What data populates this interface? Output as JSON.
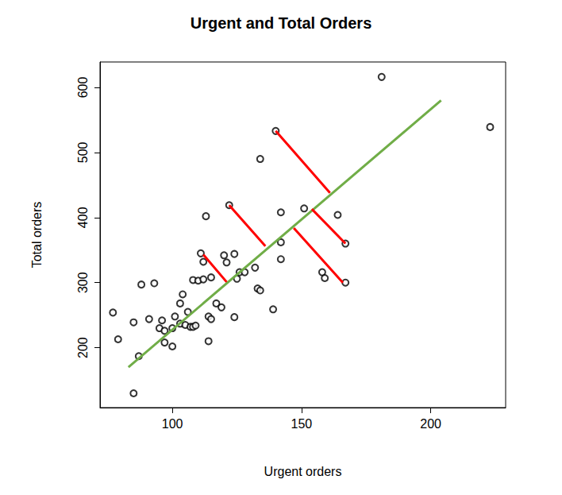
{
  "chart_data": {
    "type": "scatter",
    "title": "Urgent and Total Orders",
    "x_label": "Urgent orders",
    "y_label": "Total orders",
    "xlim": [
      72,
      229
    ],
    "ylim": [
      108,
      639
    ],
    "xticks": [
      100,
      150,
      200
    ],
    "yticks": [
      200,
      300,
      400,
      500,
      600
    ],
    "grid": false,
    "series": [
      {
        "type": "scatter",
        "color": "#000000",
        "marker": "circle_open",
        "x": [
          77,
          79,
          85,
          85,
          87,
          88,
          91,
          93,
          95,
          96,
          97,
          97,
          100,
          100,
          101,
          103,
          103,
          104,
          105,
          106,
          107,
          108,
          108,
          109,
          110,
          111,
          112,
          112,
          113,
          114,
          114,
          115,
          115,
          117,
          119,
          120,
          121,
          122,
          124,
          124,
          125,
          126,
          128,
          132,
          133,
          134,
          134,
          139,
          140,
          142,
          142,
          142,
          151,
          158,
          159,
          164,
          167,
          167,
          181,
          223
        ],
        "values": [
          254,
          213,
          130,
          239,
          187,
          297,
          244,
          299,
          230,
          242,
          208,
          226,
          202,
          230,
          248,
          237,
          268,
          282,
          235,
          255,
          232,
          232,
          304,
          234,
          303,
          345,
          332,
          305,
          402,
          210,
          248,
          244,
          308,
          268,
          262,
          342,
          331,
          419,
          247,
          344,
          306,
          316,
          316,
          323,
          291,
          288,
          490,
          259,
          533,
          408,
          362,
          336,
          414,
          316,
          307,
          404,
          360,
          300,
          616,
          539
        ]
      },
      {
        "type": "line",
        "color": "#70ad47",
        "line_style": "solid",
        "x": [
          83,
          204
        ],
        "values": [
          170,
          580
        ]
      },
      {
        "type": "line",
        "color": "#ff0000",
        "line_style": "solid",
        "x": [
          140,
          161,
          null,
          122,
          136,
          null,
          112,
          121,
          null,
          167,
          154,
          null,
          166,
          147
        ],
        "values": [
          533,
          438,
          null,
          419,
          356,
          null,
          343,
          301,
          null,
          360,
          413,
          null,
          300,
          384
        ]
      }
    ]
  }
}
